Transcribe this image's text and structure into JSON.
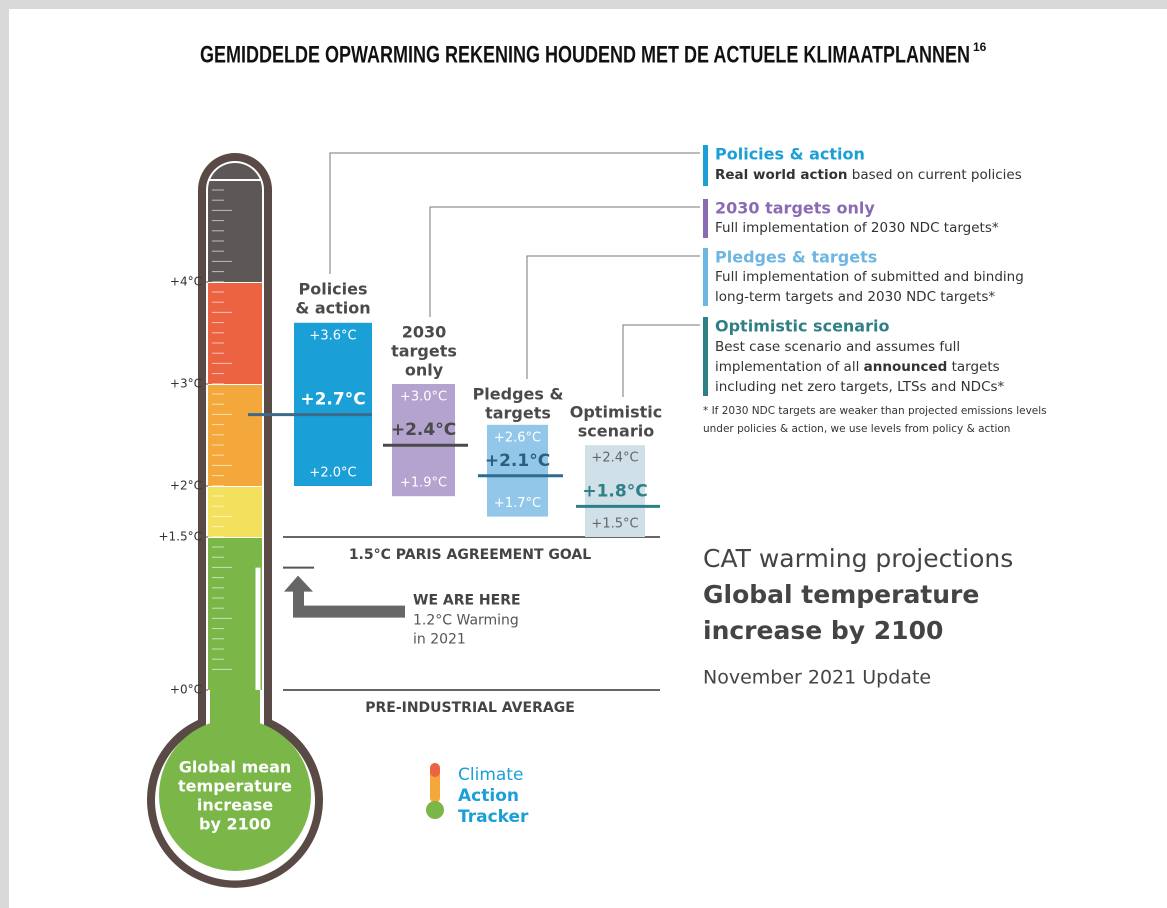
{
  "chart_data": {
    "type": "range",
    "title": "GEMIDDELDE OPWARMING REKENING HOUDEND MET DE ACTUELE KLIMAATPLANNEN",
    "title_note": "16",
    "ylim": [
      0,
      5
    ],
    "yticks": [
      {
        "value": 0,
        "label": "+0°C"
      },
      {
        "value": 1.5,
        "label": "+1.5°C"
      },
      {
        "value": 2,
        "label": "+2°C"
      },
      {
        "value": 3,
        "label": "+3°C"
      },
      {
        "value": 4,
        "label": "+4°C"
      }
    ],
    "bands": [
      {
        "from": 0,
        "to": 1.5,
        "color": "#7ab648"
      },
      {
        "from": 1.5,
        "to": 2,
        "color": "#f3e15e"
      },
      {
        "from": 2,
        "to": 3,
        "color": "#f4a83c"
      },
      {
        "from": 3,
        "to": 4,
        "color": "#ec6342"
      },
      {
        "from": 4,
        "to": 5,
        "color": "#5d5857"
      }
    ],
    "bulb_lines": [
      "Global mean",
      "temperature",
      "increase",
      "by 2100"
    ],
    "series": [
      {
        "name": "Policies & action",
        "heading": [
          "Policies",
          "& action"
        ],
        "low": 2.0,
        "mid": 2.7,
        "high": 3.6,
        "value_labels": {
          "low": "+2.0°C",
          "mid": "+2.7°C",
          "high": "+3.6°C"
        },
        "color": "#1a9fd7",
        "legend_color": "#1a9fd7",
        "label_color": "#ffffff",
        "mid_color": "#ffffff",
        "line_color": "#3d6a88",
        "description": [
          [
            {
              "text": "Real world action",
              "bold": true
            },
            {
              "text": " based on current policies",
              "bold": false
            }
          ]
        ]
      },
      {
        "name": "2030 targets only",
        "heading": [
          "2030",
          "targets",
          "only"
        ],
        "low": 1.9,
        "mid": 2.4,
        "high": 3.0,
        "value_labels": {
          "low": "+1.9°C",
          "mid": "+2.4°C",
          "high": "+3.0°C"
        },
        "color": "#b4a2cf",
        "legend_color": "#8a6bb3",
        "label_color": "#ffffff",
        "mid_color": "#4a4a4a",
        "line_color": "#4a4a4a",
        "description": [
          [
            {
              "text": "Full implementation of 2030 NDC targets*",
              "bold": false
            }
          ]
        ]
      },
      {
        "name": "Pledges & targets",
        "heading": [
          "Pledges &",
          "targets"
        ],
        "low": 1.7,
        "mid": 2.1,
        "high": 2.6,
        "value_labels": {
          "low": "+1.7°C",
          "mid": "+2.1°C",
          "high": "+2.6°C"
        },
        "color": "#93c7e9",
        "legend_color": "#6db6e2",
        "label_color": "#ffffff",
        "mid_color": "#2c5f7e",
        "line_color": "#2c6c8c",
        "description": [
          [
            {
              "text": "Full implementation of submitted and binding",
              "bold": false
            }
          ],
          [
            {
              "text": "long-term targets and 2030 NDC targets*",
              "bold": false
            }
          ]
        ]
      },
      {
        "name": "Optimistic scenario",
        "heading": [
          "Optimistic",
          "scenario"
        ],
        "low": 1.5,
        "mid": 1.8,
        "high": 2.4,
        "value_labels": {
          "low": "+1.5°C",
          "mid": "+1.8°C",
          "high": "+2.4°C"
        },
        "color": "#cfe0e8",
        "legend_color": "#2f7f86",
        "label_color": "#666666",
        "mid_color": "#2f7f86",
        "line_color": "#2f7f86",
        "description": [
          [
            {
              "text": "Best case scenario and assumes full",
              "bold": false
            }
          ],
          [
            {
              "text": "implementation of all ",
              "bold": false
            },
            {
              "text": "announced",
              "bold": true
            },
            {
              "text": " targets",
              "bold": false
            }
          ],
          [
            {
              "text": "including net zero targets, LTSs and NDCs*",
              "bold": false
            }
          ]
        ]
      }
    ],
    "footnote": [
      "* If 2030 NDC targets are weaker than projected emissions levels",
      "under policies & action, we use levels from policy & action"
    ],
    "references": [
      {
        "value": 1.5,
        "label": "1.5°C PARIS AGREEMENT GOAL"
      },
      {
        "value": 0,
        "label": "PRE-INDUSTRIAL AVERAGE"
      }
    ],
    "current": {
      "value": 1.2,
      "heading": "WE ARE HERE",
      "lines": [
        "1.2°C Warming",
        "in 2021"
      ]
    },
    "subtitle": {
      "lines": [
        "CAT warming projections"
      ],
      "bold_lines": [
        "Global temperature",
        "increase by 2100"
      ],
      "update": "November 2021 Update"
    },
    "logo": [
      "Climate",
      "Action",
      "Tracker"
    ]
  }
}
